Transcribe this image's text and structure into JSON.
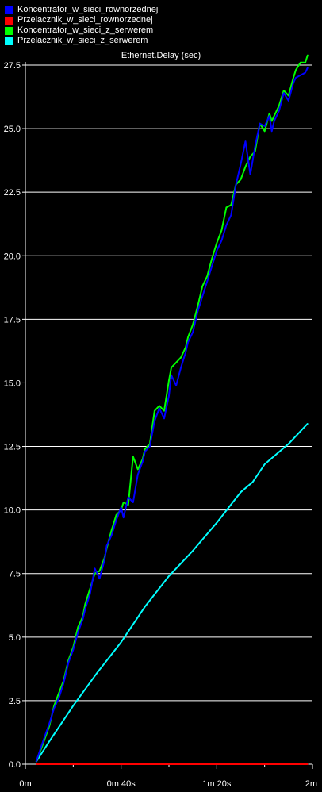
{
  "chart_data": {
    "type": "line",
    "title": "Ethernet.Delay (sec)",
    "xlabel": "",
    "ylabel": "",
    "xlim": [
      0,
      120
    ],
    "ylim": [
      0,
      27.5
    ],
    "x_ticks": [
      {
        "value": 0,
        "label": "0m"
      },
      {
        "value": 40,
        "label": "0m 40s"
      },
      {
        "value": 80,
        "label": "1m 20s"
      },
      {
        "value": 120,
        "label": "2m"
      }
    ],
    "y_ticks": [
      {
        "value": 0,
        "label": "0.0"
      },
      {
        "value": 2.5,
        "label": "2.5"
      },
      {
        "value": 5,
        "label": "5.0"
      },
      {
        "value": 7.5,
        "label": "7.5"
      },
      {
        "value": 10,
        "label": "10.0"
      },
      {
        "value": 12.5,
        "label": "12.5"
      },
      {
        "value": 15,
        "label": "15.0"
      },
      {
        "value": 17.5,
        "label": "17.5"
      },
      {
        "value": 20,
        "label": "20.0"
      },
      {
        "value": 22.5,
        "label": "22.5"
      },
      {
        "value": 25,
        "label": "25.0"
      },
      {
        "value": 27.5,
        "label": "27.5"
      }
    ],
    "grid": "horizontal",
    "legend_position": "top-left",
    "series": [
      {
        "name": "Koncentrator_w_sieci_rownorzednej",
        "color": "#0000ff",
        "x": [
          4.5,
          7,
          10,
          12,
          14,
          16,
          18,
          20,
          22,
          24,
          25,
          27,
          29,
          31,
          33,
          34,
          36,
          38,
          40,
          41,
          43,
          45,
          47,
          49,
          50,
          52,
          54,
          56,
          58,
          60,
          61,
          63,
          65,
          67,
          68,
          70,
          72,
          74,
          76,
          78,
          80,
          82,
          84,
          86,
          88,
          90,
          92,
          94,
          96,
          98,
          100,
          102,
          103,
          104,
          106,
          108,
          110,
          112,
          113,
          115,
          117,
          118
        ],
        "y": [
          0.1,
          0.8,
          1.6,
          2.2,
          2.6,
          3.2,
          4.0,
          4.5,
          5.2,
          5.7,
          6.1,
          6.7,
          7.7,
          7.3,
          8.0,
          8.6,
          9.0,
          9.6,
          10.1,
          9.7,
          10.5,
          10.3,
          11.4,
          11.9,
          12.3,
          12.5,
          13.5,
          14.0,
          13.6,
          14.5,
          15.3,
          14.9,
          15.6,
          16.2,
          16.6,
          17.0,
          17.8,
          18.4,
          19.0,
          19.6,
          20.2,
          20.6,
          21.2,
          21.6,
          22.8,
          23.6,
          24.5,
          23.2,
          24.3,
          25.2,
          25.1,
          25.5,
          24.9,
          25.3,
          25.7,
          26.4,
          26.1,
          26.8,
          27.0,
          27.1,
          27.2,
          27.4
        ],
        "values_note": ""
      },
      {
        "name": "Przelacznik_w_sieci_rownorzednej",
        "color": "#ff0000",
        "x": [
          4.5,
          118
        ],
        "y": [
          0.0,
          0.0
        ]
      },
      {
        "name": "Koncentrator_w_sieci_z_serwerem",
        "color": "#00ff00",
        "x": [
          4.5,
          7,
          10,
          12,
          14,
          16,
          18,
          20,
          22,
          24,
          25,
          27,
          29,
          31,
          33,
          34,
          36,
          38,
          40,
          41,
          43,
          45,
          47,
          49,
          50,
          52,
          54,
          56,
          58,
          60,
          61,
          63,
          65,
          67,
          68,
          70,
          72,
          74,
          76,
          78,
          80,
          82,
          84,
          86,
          88,
          90,
          92,
          94,
          96,
          98,
          100,
          102,
          103,
          104,
          106,
          108,
          110,
          112,
          113,
          115,
          117,
          118
        ],
        "y": [
          0.1,
          0.7,
          1.5,
          2.3,
          2.8,
          3.3,
          4.1,
          4.6,
          5.4,
          5.8,
          6.3,
          6.9,
          7.5,
          7.6,
          8.1,
          8.5,
          9.2,
          9.8,
          10.0,
          10.3,
          10.2,
          12.1,
          11.6,
          12.0,
          12.4,
          12.6,
          13.9,
          14.1,
          13.9,
          15.1,
          15.6,
          15.8,
          16.0,
          16.4,
          16.8,
          17.3,
          18.0,
          18.8,
          19.2,
          19.9,
          20.5,
          21.0,
          21.9,
          22.0,
          22.8,
          23.0,
          23.5,
          23.9,
          24.1,
          25.2,
          24.9,
          25.6,
          25.3,
          25.5,
          25.9,
          26.5,
          26.3,
          27.0,
          27.3,
          27.6,
          27.6,
          27.9
        ]
      },
      {
        "name": "Przelacznik_w_sieci_z_serwerem",
        "color": "#00ffff",
        "x": [
          4.5,
          10,
          20,
          30,
          40,
          50,
          60,
          70,
          80,
          90,
          95,
          100,
          110,
          118
        ],
        "y": [
          0.1,
          0.9,
          2.3,
          3.6,
          4.8,
          6.2,
          7.4,
          8.4,
          9.5,
          10.7,
          11.1,
          11.8,
          12.6,
          13.4
        ]
      }
    ]
  }
}
